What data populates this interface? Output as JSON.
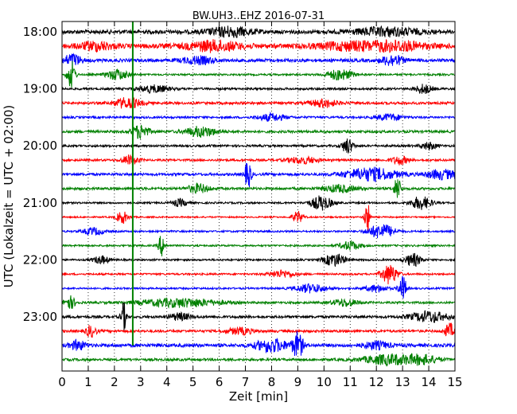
{
  "chart_data": {
    "type": "line",
    "title": "BW.UH3..EHZ 2016-07-31",
    "xlabel": "Zeit  [min]",
    "ylabel": "UTC (Lokalzeit = UTC + 02:00)",
    "xlim": [
      0,
      15
    ],
    "x_ticks": [
      0,
      1,
      2,
      3,
      4,
      5,
      6,
      7,
      8,
      9,
      10,
      11,
      12,
      13,
      14,
      15
    ],
    "x_tick_labels": [
      "0",
      "1",
      "2",
      "3",
      "4",
      "5",
      "6",
      "7",
      "8",
      "9",
      "10",
      "11",
      "12",
      "13",
      "14",
      "15"
    ],
    "y_tick_labels": [
      "18:00",
      "19:00",
      "20:00",
      "21:00",
      "22:00",
      "23:00"
    ],
    "y_tick_rows": [
      0,
      4,
      8,
      12,
      16,
      20
    ],
    "grid": "vertical dotted at each minute",
    "marker_line": {
      "x_min": 2.7,
      "color": "#008000"
    },
    "row_colors": [
      "#000000",
      "#ff0000",
      "#0000ff",
      "#008000"
    ],
    "traces": [
      {
        "row": 0,
        "color": "#000000",
        "base": 0.55,
        "bursts": [
          [
            6.4,
            0.8,
            1.3
          ],
          [
            12.4,
            1.2,
            1.1
          ]
        ]
      },
      {
        "row": 1,
        "color": "#ff0000",
        "base": 0.65,
        "bursts": [
          [
            1.3,
            0.6,
            1.1
          ],
          [
            5.8,
            1.0,
            1.3
          ],
          [
            11.0,
            1.2,
            1.0
          ],
          [
            12.8,
            1.0,
            1.2
          ]
        ]
      },
      {
        "row": 2,
        "color": "#0000ff",
        "base": 0.45,
        "bursts": [
          [
            0.4,
            0.3,
            1.8
          ],
          [
            5.2,
            0.6,
            1.0
          ],
          [
            12.6,
            0.4,
            1.5
          ]
        ]
      },
      {
        "row": 3,
        "color": "#008000",
        "base": 0.25,
        "bursts": [
          [
            0.35,
            0.15,
            4.0
          ],
          [
            2.1,
            0.4,
            1.5
          ],
          [
            10.6,
            0.5,
            1.5
          ]
        ]
      },
      {
        "row": 4,
        "color": "#000000",
        "base": 0.3,
        "bursts": [
          [
            3.5,
            0.6,
            1.0
          ],
          [
            13.8,
            0.3,
            1.3
          ]
        ]
      },
      {
        "row": 5,
        "color": "#ff0000",
        "base": 0.35,
        "bursts": [
          [
            2.5,
            0.5,
            1.5
          ],
          [
            10.0,
            0.5,
            1.1
          ]
        ]
      },
      {
        "row": 6,
        "color": "#0000ff",
        "base": 0.3,
        "bursts": [
          [
            8.0,
            0.5,
            1.0
          ],
          [
            12.5,
            0.5,
            0.9
          ]
        ]
      },
      {
        "row": 7,
        "color": "#008000",
        "base": 0.35,
        "bursts": [
          [
            3.0,
            0.3,
            2.0
          ],
          [
            5.3,
            0.6,
            1.4
          ]
        ]
      },
      {
        "row": 8,
        "color": "#000000",
        "base": 0.3,
        "bursts": [
          [
            10.9,
            0.2,
            2.2
          ],
          [
            14.0,
            0.3,
            1.0
          ]
        ]
      },
      {
        "row": 9,
        "color": "#ff0000",
        "base": 0.3,
        "bursts": [
          [
            2.6,
            0.3,
            1.4
          ],
          [
            9.2,
            0.6,
            0.9
          ],
          [
            12.9,
            0.3,
            1.2
          ]
        ]
      },
      {
        "row": 10,
        "color": "#0000ff",
        "base": 0.35,
        "bursts": [
          [
            7.1,
            0.12,
            4.0
          ],
          [
            11.8,
            1.0,
            1.8
          ],
          [
            14.5,
            0.6,
            1.3
          ]
        ]
      },
      {
        "row": 11,
        "color": "#008000",
        "base": 0.35,
        "bursts": [
          [
            5.2,
            0.4,
            1.2
          ],
          [
            12.8,
            0.12,
            3.5
          ],
          [
            10.6,
            0.6,
            1.0
          ]
        ]
      },
      {
        "row": 12,
        "color": "#000000",
        "base": 0.25,
        "bursts": [
          [
            9.9,
            0.4,
            2.0
          ],
          [
            13.7,
            0.4,
            1.8
          ],
          [
            4.5,
            0.3,
            1.0
          ]
        ]
      },
      {
        "row": 13,
        "color": "#ff0000",
        "base": 0.2,
        "bursts": [
          [
            11.65,
            0.1,
            4.5
          ],
          [
            9.0,
            0.2,
            1.6
          ],
          [
            2.3,
            0.2,
            1.8
          ]
        ]
      },
      {
        "row": 14,
        "color": "#0000ff",
        "base": 0.25,
        "bursts": [
          [
            12.2,
            0.5,
            2.0
          ],
          [
            1.2,
            0.4,
            1.0
          ]
        ]
      },
      {
        "row": 15,
        "color": "#008000",
        "base": 0.25,
        "bursts": [
          [
            3.8,
            0.12,
            3.0
          ],
          [
            11.0,
            0.4,
            1.2
          ]
        ]
      },
      {
        "row": 16,
        "color": "#000000",
        "base": 0.25,
        "bursts": [
          [
            10.4,
            0.4,
            1.8
          ],
          [
            13.4,
            0.3,
            1.8
          ],
          [
            1.5,
            0.3,
            1.1
          ]
        ]
      },
      {
        "row": 17,
        "color": "#ff0000",
        "base": 0.25,
        "bursts": [
          [
            12.5,
            0.3,
            2.8
          ],
          [
            8.4,
            0.5,
            1.0
          ]
        ]
      },
      {
        "row": 18,
        "color": "#0000ff",
        "base": 0.25,
        "bursts": [
          [
            13.0,
            0.15,
            3.5
          ],
          [
            9.5,
            0.6,
            1.2
          ],
          [
            12.0,
            0.4,
            1.0
          ]
        ]
      },
      {
        "row": 19,
        "color": "#008000",
        "base": 0.3,
        "bursts": [
          [
            4.5,
            1.5,
            1.2
          ],
          [
            0.3,
            0.2,
            1.8
          ],
          [
            10.8,
            0.5,
            1.0
          ]
        ]
      },
      {
        "row": 20,
        "color": "#000000",
        "base": 0.35,
        "bursts": [
          [
            2.35,
            0.1,
            4.0
          ],
          [
            14.0,
            0.7,
            1.5
          ],
          [
            4.5,
            0.4,
            1.0
          ]
        ]
      },
      {
        "row": 21,
        "color": "#ff0000",
        "base": 0.35,
        "bursts": [
          [
            1.1,
            0.2,
            1.6
          ],
          [
            14.8,
            0.2,
            2.0
          ],
          [
            6.8,
            0.5,
            0.9
          ]
        ]
      },
      {
        "row": 22,
        "color": "#0000ff",
        "base": 0.45,
        "bursts": [
          [
            9.0,
            0.2,
            3.5
          ],
          [
            8.0,
            0.6,
            1.8
          ],
          [
            0.6,
            0.3,
            1.3
          ],
          [
            12.0,
            0.5,
            1.0
          ]
        ]
      },
      {
        "row": 23,
        "color": "#008000",
        "base": 0.35,
        "bursts": [
          [
            12.5,
            1.0,
            1.4
          ],
          [
            13.8,
            0.6,
            1.1
          ]
        ]
      }
    ]
  }
}
